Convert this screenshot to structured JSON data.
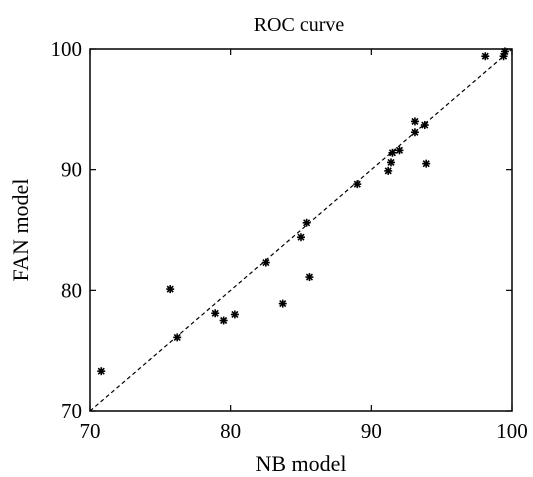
{
  "chart_data": {
    "type": "scatter",
    "title": "ROC curve",
    "xlabel": "NB model",
    "ylabel": "FAN model",
    "xlim": [
      70,
      100
    ],
    "ylim": [
      70,
      100
    ],
    "xticks": [
      "70",
      "80",
      "90",
      "100"
    ],
    "yticks": [
      "70",
      "80",
      "90",
      "100"
    ],
    "grid": false,
    "reference_line": "y = x (dashed)",
    "points": [
      {
        "x": 70.8,
        "y": 73.3
      },
      {
        "x": 75.7,
        "y": 80.1
      },
      {
        "x": 76.2,
        "y": 76.1
      },
      {
        "x": 78.9,
        "y": 78.1
      },
      {
        "x": 79.5,
        "y": 77.5
      },
      {
        "x": 80.3,
        "y": 78.0
      },
      {
        "x": 82.5,
        "y": 82.3
      },
      {
        "x": 83.7,
        "y": 78.9
      },
      {
        "x": 85.0,
        "y": 84.4
      },
      {
        "x": 85.4,
        "y": 85.6
      },
      {
        "x": 85.6,
        "y": 81.1
      },
      {
        "x": 89.0,
        "y": 88.8
      },
      {
        "x": 91.2,
        "y": 89.9
      },
      {
        "x": 91.4,
        "y": 90.6
      },
      {
        "x": 91.5,
        "y": 91.4
      },
      {
        "x": 92.0,
        "y": 91.6
      },
      {
        "x": 93.1,
        "y": 94.0
      },
      {
        "x": 93.1,
        "y": 93.1
      },
      {
        "x": 93.8,
        "y": 93.7
      },
      {
        "x": 93.9,
        "y": 90.5
      },
      {
        "x": 98.1,
        "y": 99.4
      },
      {
        "x": 99.4,
        "y": 99.4
      },
      {
        "x": 99.5,
        "y": 99.8
      }
    ]
  }
}
